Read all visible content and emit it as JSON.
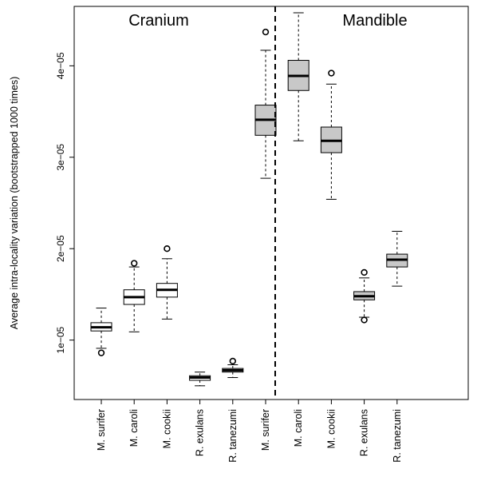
{
  "chart_data": {
    "type": "boxplot",
    "ylabel": "Average intra-locality variation (bootstrapped 1000 times)",
    "ylim": [
      3.5e-06,
      4.65e-05
    ],
    "yticks": [
      1e-05,
      2e-05,
      3e-05,
      4e-05
    ],
    "ytick_labels": [
      "1e−05",
      "2e−05",
      "3e−05",
      "4e−05"
    ],
    "panels": [
      {
        "label": "Cranium",
        "fill": "#ffffff"
      },
      {
        "label": "Mandible",
        "fill": "#c8c8c8"
      }
    ],
    "categories": [
      "M. surifer",
      "M. caroli",
      "M. cookii",
      "R. exulans",
      "R. tanezumi",
      "M. surifer",
      "M. caroli",
      "M. cookii",
      "R. exulans",
      "R. tanezumi"
    ],
    "boxes": [
      {
        "panel": 0,
        "wlo": 9.1e-06,
        "q1": 1.1e-05,
        "med": 1.14e-05,
        "q3": 1.19e-05,
        "whi": 1.35e-05,
        "outliers": [
          8.6e-06
        ]
      },
      {
        "panel": 0,
        "wlo": 1.09e-05,
        "q1": 1.39e-05,
        "med": 1.47e-05,
        "q3": 1.55e-05,
        "whi": 1.8e-05,
        "outliers": [
          1.84e-05
        ]
      },
      {
        "panel": 0,
        "wlo": 1.23e-05,
        "q1": 1.47e-05,
        "med": 1.55e-05,
        "q3": 1.62e-05,
        "whi": 1.89e-05,
        "outliers": [
          2e-05
        ]
      },
      {
        "panel": 0,
        "wlo": 5e-06,
        "q1": 5.6e-06,
        "med": 5.9e-06,
        "q3": 6.1e-06,
        "whi": 6.5e-06,
        "outliers": []
      },
      {
        "panel": 0,
        "wlo": 5.9e-06,
        "q1": 6.5e-06,
        "med": 6.7e-06,
        "q3": 6.9e-06,
        "whi": 7.3e-06,
        "outliers": [
          7.7e-06
        ]
      },
      {
        "panel": 1,
        "wlo": 2.77e-05,
        "q1": 3.24e-05,
        "med": 3.41e-05,
        "q3": 3.57e-05,
        "whi": 4.17e-05,
        "outliers": [
          4.37e-05
        ]
      },
      {
        "panel": 1,
        "wlo": 3.18e-05,
        "q1": 3.73e-05,
        "med": 3.89e-05,
        "q3": 4.06e-05,
        "whi": 4.58e-05,
        "outliers": []
      },
      {
        "panel": 1,
        "wlo": 2.54e-05,
        "q1": 3.05e-05,
        "med": 3.18e-05,
        "q3": 3.33e-05,
        "whi": 3.8e-05,
        "outliers": [
          3.92e-05
        ]
      },
      {
        "panel": 1,
        "wlo": 1.25e-05,
        "q1": 1.44e-05,
        "med": 1.48e-05,
        "q3": 1.53e-05,
        "whi": 1.68e-05,
        "outliers": [
          1.74e-05,
          1.22e-05
        ]
      },
      {
        "panel": 1,
        "wlo": 1.59e-05,
        "q1": 1.8e-05,
        "med": 1.88e-05,
        "q3": 1.94e-05,
        "whi": 2.19e-05,
        "outliers": []
      }
    ],
    "legend": "none",
    "grid": false
  }
}
